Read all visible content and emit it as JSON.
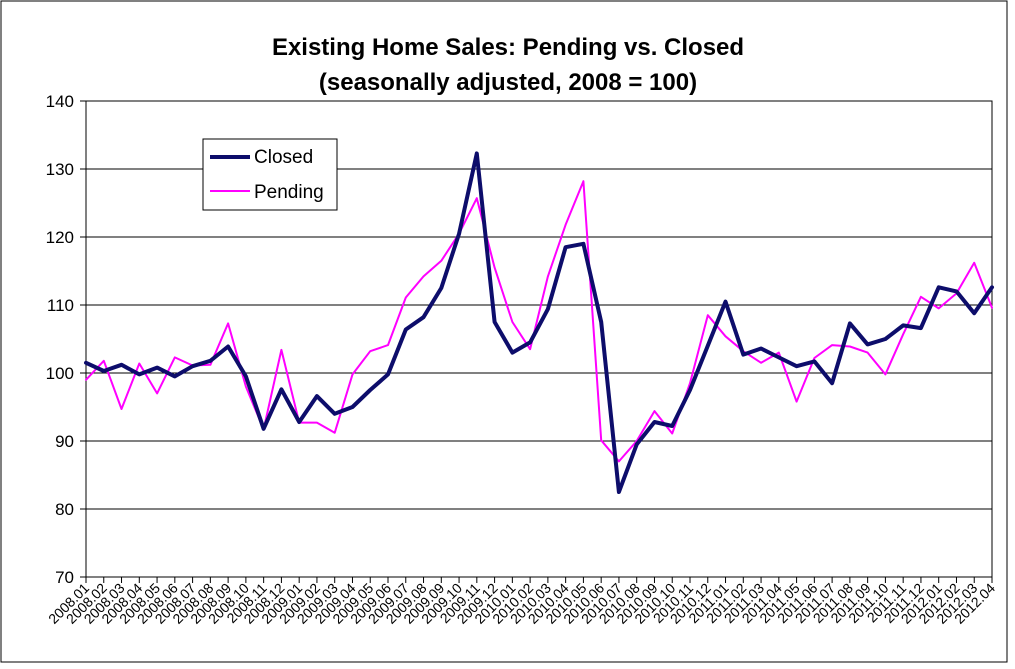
{
  "chart_data": {
    "type": "line",
    "title": "Existing Home Sales:  Pending vs. Closed",
    "subtitle": "(seasonally adjusted, 2008 = 100)",
    "xlabel": "",
    "ylabel": "",
    "ylim": [
      70,
      140
    ],
    "yticks": [
      70,
      80,
      90,
      100,
      110,
      120,
      130,
      140
    ],
    "grid": true,
    "legend_position": "top-left",
    "x": [
      "2008.01",
      "2008.02",
      "2008.03",
      "2008.04",
      "2008.05",
      "2008.06",
      "2008.07",
      "2008.08",
      "2008.09",
      "2008.10",
      "2008.11",
      "2008.12",
      "2009.01",
      "2009.02",
      "2009.03",
      "2009.04",
      "2009.05",
      "2009.06",
      "2009.07",
      "2009.08",
      "2009.09",
      "2009.10",
      "2009.11",
      "2009.12",
      "2010.01",
      "2010.02",
      "2010.03",
      "2010.04",
      "2010.05",
      "2010.06",
      "2010.07",
      "2010.08",
      "2010.09",
      "2010.10",
      "2010.11",
      "2010.12",
      "2011.01",
      "2011.02",
      "2011.03",
      "2011.04",
      "2011.05",
      "2011.06",
      "2011.07",
      "2011.08",
      "2011.09",
      "2011.10",
      "2011.11",
      "2011.12",
      "2012.01",
      "2012.02",
      "2012.03",
      "2012.04"
    ],
    "x_tick_labels": [
      "2008.01",
      "2008.02",
      "2008.03",
      "2008.04",
      "2008.05",
      "2008.06",
      "2008.07",
      "2008.08",
      "2008.09",
      "2008.10",
      "2008.11",
      "2008.12",
      "2009.01",
      "2009.02",
      "2009.03",
      "2009.04",
      "2009.05",
      "2009.06",
      "2009.07",
      "2009.08",
      "2009.09",
      "2009.10",
      "2009.11",
      "2009.12",
      "2010.01",
      "2010.02",
      "2010.03",
      "2010.04",
      "2010.05",
      "2010.06",
      "2010.07",
      "2010.08",
      "2010.09",
      "2010.10",
      "2010.11",
      "2010.12",
      "2011.01",
      "2011.02",
      "2011.03",
      "2011.04",
      "2011.05",
      "2011.06",
      "2011.07",
      "2011.08",
      "2011.09",
      "2011.10",
      "2011.11",
      "2011.12",
      "2012.01",
      "2012.02",
      "2012.03",
      "2012.04"
    ],
    "series": [
      {
        "name": "Closed",
        "color": "#0d0d6b",
        "values": [
          101.5,
          100.3,
          101.2,
          99.8,
          100.8,
          99.5,
          101.0,
          101.8,
          103.9,
          99.5,
          91.8,
          97.6,
          92.8,
          96.6,
          94.0,
          95.0,
          97.5,
          99.8,
          106.4,
          108.2,
          112.5,
          120.5,
          132.3,
          107.5,
          103.0,
          104.5,
          109.4,
          118.5,
          119.0,
          107.5,
          82.5,
          89.5,
          92.8,
          92.2,
          97.5,
          104.0,
          110.5,
          102.7,
          103.6,
          102.3,
          101.0,
          101.7,
          98.5,
          107.3,
          104.2,
          105.0,
          107.0,
          106.6,
          112.6,
          112.0,
          108.8,
          112.6
        ]
      },
      {
        "name": "Pending",
        "color": "#ff00ff",
        "values": [
          99.0,
          101.8,
          94.7,
          101.4,
          97.0,
          102.3,
          101.1,
          101.2,
          107.3,
          98.0,
          91.7,
          103.4,
          92.7,
          92.7,
          91.2,
          99.8,
          103.2,
          104.1,
          111.1,
          114.2,
          116.5,
          120.5,
          125.7,
          115.5,
          107.5,
          103.5,
          114.2,
          121.8,
          128.2,
          90.1,
          87.0,
          90.0,
          94.4,
          91.1,
          98.5,
          108.5,
          105.4,
          103.2,
          101.5,
          103.0,
          95.8,
          102.2,
          104.1,
          103.9,
          103.0,
          99.8,
          105.7,
          111.2,
          109.5,
          111.7,
          116.2,
          109.6
        ]
      }
    ]
  }
}
